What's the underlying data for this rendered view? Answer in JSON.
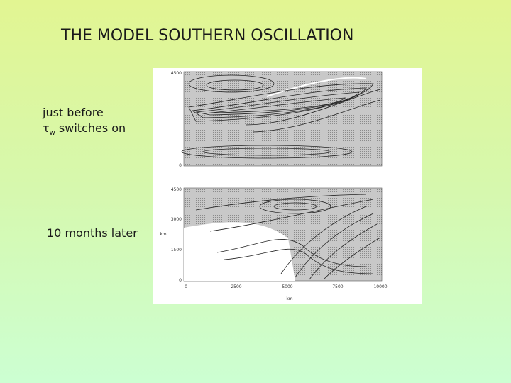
{
  "title": "THE MODEL SOUTHERN OSCILLATION",
  "captions": [
    {
      "line1": "just before",
      "symbol": "τ",
      "subscript": "w",
      "line2": "switches on"
    },
    {
      "line1": "10 months later"
    }
  ],
  "figure": {
    "top_panel": {
      "yticks": [
        "4500",
        "0"
      ]
    },
    "bottom_panel": {
      "yticks": [
        "4500",
        "3000",
        "1500",
        "0"
      ],
      "xticks": [
        "0",
        "2500",
        "5000",
        "7500",
        "10000"
      ],
      "ylabel": "km",
      "xlabel": "km"
    }
  }
}
